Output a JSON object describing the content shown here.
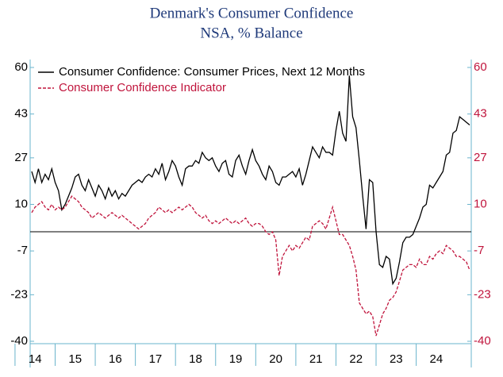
{
  "chart_data": {
    "type": "line",
    "title": "Denmark's Consumer Confidence",
    "subtitle": "NSA, % Balance",
    "categories": [
      null,
      "14",
      null,
      null,
      null,
      null,
      null,
      null,
      null,
      null,
      null,
      null,
      null,
      "15",
      null,
      null,
      null,
      null,
      null,
      null,
      null,
      null,
      null,
      null,
      null,
      "16",
      null,
      null,
      null,
      null,
      null,
      null,
      null,
      null,
      null,
      null,
      null,
      "17",
      null,
      null,
      null,
      null,
      null,
      null,
      null,
      null,
      null,
      null,
      null,
      "18",
      null,
      null,
      null,
      null,
      null,
      null,
      null,
      null,
      null,
      null,
      null,
      "19",
      null,
      null,
      null,
      null,
      null,
      null,
      null,
      null,
      null,
      null,
      null,
      "20",
      null,
      null,
      null,
      null,
      null,
      null,
      null,
      null,
      null,
      null,
      null,
      "21",
      null,
      null,
      null,
      null,
      null,
      null,
      null,
      null,
      null,
      null,
      null,
      "22",
      null,
      null,
      null,
      null,
      null,
      null,
      null,
      null,
      null,
      null,
      null,
      "23",
      null,
      null,
      null,
      null,
      null,
      null,
      null,
      null,
      null,
      null,
      null,
      "24",
      null,
      null,
      null,
      null,
      null,
      null,
      null,
      null,
      null,
      null
    ],
    "series": [
      {
        "name": "Consumer Confidence: Consumer Prices, Next 12 Months",
        "color": "#000000",
        "dash": false,
        "values": [
          22,
          18,
          23,
          18,
          21,
          19,
          23,
          18,
          15,
          8,
          10,
          13,
          16,
          20,
          21,
          17,
          15,
          19,
          16,
          13,
          17,
          15,
          12,
          16,
          13,
          15,
          12,
          14,
          13,
          15,
          17,
          18,
          19,
          18,
          20,
          21,
          20,
          23,
          21,
          25,
          19,
          22,
          26,
          24,
          20,
          17,
          23,
          24,
          24,
          26,
          25,
          29,
          27,
          26,
          27,
          24,
          22,
          25,
          26,
          21,
          20,
          26,
          28,
          24,
          21,
          26,
          30,
          26,
          24,
          21,
          19,
          24,
          22,
          18,
          17,
          20,
          20,
          21,
          22,
          20,
          23,
          17,
          21,
          26,
          31,
          29,
          27,
          31,
          29,
          29,
          28,
          37,
          44,
          36,
          33,
          57,
          42,
          38,
          26,
          13,
          1,
          19,
          18,
          0,
          -12,
          -13,
          -9,
          -10,
          -19,
          -17,
          -11,
          -4,
          -2,
          -2,
          -1,
          2,
          5,
          9,
          10,
          17,
          16,
          18,
          20,
          22,
          28,
          29,
          36,
          37,
          42,
          41,
          40,
          39
        ]
      },
      {
        "name": "Consumer Confidence Indicator",
        "color": "#c0143c",
        "dash": true,
        "axis": "y2",
        "values": [
          7,
          9,
          10,
          11,
          9,
          8,
          10,
          8,
          9,
          8,
          9,
          11,
          13,
          12,
          11,
          9,
          8,
          7,
          5,
          6,
          7,
          6,
          5,
          6,
          7,
          6,
          5,
          6,
          5,
          4,
          3,
          2,
          1,
          2,
          3,
          5,
          6,
          7,
          9,
          8,
          7,
          8,
          7,
          8,
          9,
          8,
          9,
          10,
          9,
          7,
          6,
          5,
          6,
          4,
          3,
          4,
          3,
          4,
          5,
          4,
          3,
          4,
          3,
          4,
          5,
          3,
          2,
          3,
          3,
          2,
          0,
          -1,
          0,
          -3,
          -16,
          -9,
          -7,
          -5,
          -7,
          -5,
          -6,
          -4,
          -2,
          -3,
          2,
          3,
          4,
          3,
          1,
          5,
          9,
          4,
          -1,
          -1,
          -3,
          -5,
          -9,
          -14,
          -26,
          -28,
          -30,
          -29,
          -31,
          -38,
          -34,
          -30,
          -28,
          -25,
          -24,
          -22,
          -18,
          -14,
          -13,
          -12,
          -12,
          -13,
          -10,
          -12,
          -12,
          -9,
          -10,
          -8,
          -7,
          -8,
          -5,
          -6,
          -7,
          -9,
          -9,
          -10,
          -11,
          -14
        ]
      }
    ],
    "ylim": [
      -40,
      60
    ],
    "yticks": [
      60,
      43,
      27,
      10,
      -7,
      -23,
      -40
    ],
    "y2lim": [
      -40,
      60
    ],
    "y2ticks": [
      60,
      43,
      27,
      10,
      -7,
      -23,
      -40
    ],
    "y2color": "#c0143c",
    "zero_line": true,
    "legend": "upper left"
  }
}
